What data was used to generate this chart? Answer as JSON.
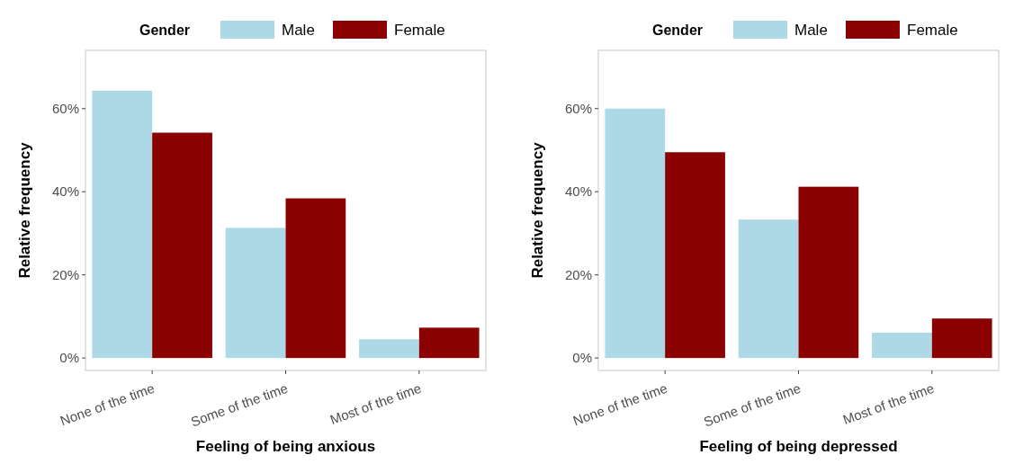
{
  "chart_data": [
    {
      "type": "bar",
      "xlabel": "Feeling of being anxious",
      "ylabel": "Relative frequency",
      "legend_title": "Gender",
      "legend": "top",
      "categories": [
        "None of the time",
        "Some of the time",
        "Most of the time"
      ],
      "series": [
        {
          "name": "Male",
          "color": "#add8e6",
          "values": [
            64.3,
            31.3,
            4.5
          ]
        },
        {
          "name": "Female",
          "color": "#8b0000",
          "values": [
            54.2,
            38.4,
            7.3
          ]
        }
      ],
      "ylim": [
        -3,
        74
      ],
      "yticks": [
        {
          "value": 0,
          "label": "0%"
        },
        {
          "value": 20,
          "label": "20%"
        },
        {
          "value": 40,
          "label": "40%"
        },
        {
          "value": 60,
          "label": "60%"
        }
      ],
      "grid": false
    },
    {
      "type": "bar",
      "xlabel": "Feeling of being depressed",
      "ylabel": "Relative frequency",
      "legend_title": "Gender",
      "legend": "top",
      "categories": [
        "None of the time",
        "Some of the time",
        "Most of the time"
      ],
      "series": [
        {
          "name": "Male",
          "color": "#add8e6",
          "values": [
            60.0,
            33.3,
            6.1
          ]
        },
        {
          "name": "Female",
          "color": "#8b0000",
          "values": [
            49.5,
            41.2,
            9.5
          ]
        }
      ],
      "ylim": [
        -3,
        74
      ],
      "yticks": [
        {
          "value": 0,
          "label": "0%"
        },
        {
          "value": 20,
          "label": "20%"
        },
        {
          "value": 40,
          "label": "40%"
        },
        {
          "value": 60,
          "label": "60%"
        }
      ],
      "grid": false
    }
  ]
}
